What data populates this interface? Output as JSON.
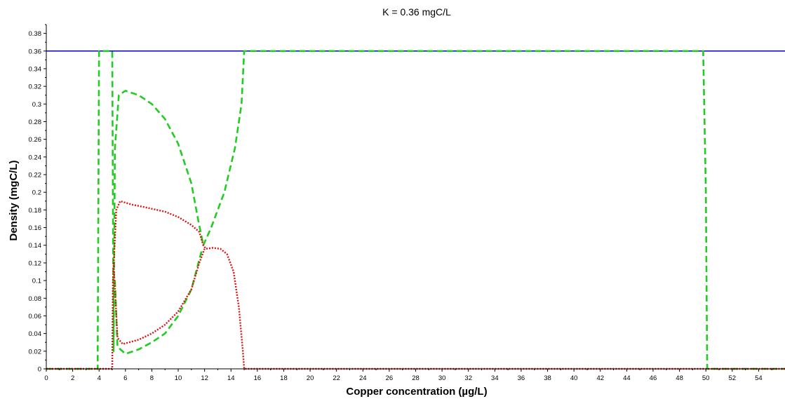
{
  "chart_data": {
    "type": "line",
    "title": "K = 0.36 mgC/L",
    "xlabel": "Copper concentration (µg/L)",
    "ylabel": "Density (mgC/L)",
    "xlim": [
      0,
      56
    ],
    "ylim": [
      0,
      0.39
    ],
    "x_ticks": [
      "0",
      "2",
      "4",
      "6",
      "8",
      "10",
      "12",
      "14",
      "16",
      "18",
      "20",
      "22",
      "24",
      "26",
      "28",
      "30",
      "32",
      "34",
      "36",
      "38",
      "40",
      "42",
      "44",
      "46",
      "48",
      "50",
      "52",
      "54"
    ],
    "y_ticks": [
      "0",
      "0.02",
      "0.04",
      "0.06",
      "0.08",
      "0.1",
      "0.12",
      "0.14",
      "0.16",
      "0.18",
      "0.2",
      "0.22",
      "0.24",
      "0.26",
      "0.28",
      "0.3",
      "0.32",
      "0.34",
      "0.36",
      "0.38"
    ],
    "grid": false,
    "colors": {
      "blue": "#0000cc",
      "green": "#22cc22",
      "red": "#dd1111",
      "axis": "#000000"
    },
    "series": [
      {
        "style": "solid",
        "color": "blue",
        "segments": [
          [
            [
              0,
              0.36
            ],
            [
              56,
              0.36
            ]
          ]
        ]
      },
      {
        "style": "dashed",
        "color": "green",
        "segments": [
          [
            [
              0,
              0
            ],
            [
              3.9,
              0
            ],
            [
              3.9,
              0.02
            ],
            [
              4.0,
              0.36
            ],
            [
              5.0,
              0.36
            ],
            [
              5.1,
              0.02
            ],
            [
              5.2,
              0.25
            ],
            [
              5.5,
              0.31
            ],
            [
              6.0,
              0.315
            ],
            [
              7.0,
              0.31
            ],
            [
              8.0,
              0.3
            ],
            [
              9.0,
              0.283
            ],
            [
              10.0,
              0.255
            ],
            [
              11.0,
              0.21
            ],
            [
              11.5,
              0.17
            ],
            [
              11.9,
              0.14
            ],
            [
              12.5,
              0.16
            ],
            [
              13.5,
              0.2
            ],
            [
              14.3,
              0.25
            ],
            [
              14.8,
              0.3
            ],
            [
              15.0,
              0.36
            ],
            [
              49.8,
              0.36
            ],
            [
              50.0,
              0.2
            ],
            [
              50.1,
              0
            ],
            [
              56,
              0
            ]
          ],
          [
            [
              5.2,
              0.1
            ],
            [
              5.4,
              0.025
            ],
            [
              6.0,
              0.017
            ],
            [
              7.0,
              0.022
            ],
            [
              8.0,
              0.03
            ],
            [
              9.0,
              0.04
            ],
            [
              10.0,
              0.06
            ],
            [
              11.0,
              0.09
            ],
            [
              11.8,
              0.135
            ]
          ]
        ]
      },
      {
        "style": "dotted",
        "color": "red",
        "segments": [
          [
            [
              0,
              0
            ],
            [
              5.0,
              0
            ],
            [
              5.05,
              0.1
            ],
            [
              5.3,
              0.18
            ],
            [
              5.6,
              0.19
            ],
            [
              6.5,
              0.186
            ],
            [
              7.5,
              0.183
            ],
            [
              9.0,
              0.178
            ],
            [
              10.0,
              0.172
            ],
            [
              11.0,
              0.163
            ],
            [
              11.6,
              0.155
            ],
            [
              11.9,
              0.14
            ],
            [
              12.1,
              0.136
            ],
            [
              12.6,
              0.137
            ],
            [
              13.2,
              0.136
            ],
            [
              13.7,
              0.13
            ],
            [
              14.2,
              0.11
            ],
            [
              14.6,
              0.07
            ],
            [
              14.9,
              0.02
            ],
            [
              15.0,
              0
            ],
            [
              56,
              0
            ]
          ],
          [
            [
              5.1,
              0.12
            ],
            [
              5.4,
              0.035
            ],
            [
              5.8,
              0.028
            ],
            [
              7.0,
              0.033
            ],
            [
              8.0,
              0.04
            ],
            [
              9.0,
              0.05
            ],
            [
              10.0,
              0.065
            ],
            [
              11.0,
              0.09
            ],
            [
              11.6,
              0.12
            ],
            [
              12.0,
              0.136
            ]
          ]
        ]
      }
    ]
  }
}
